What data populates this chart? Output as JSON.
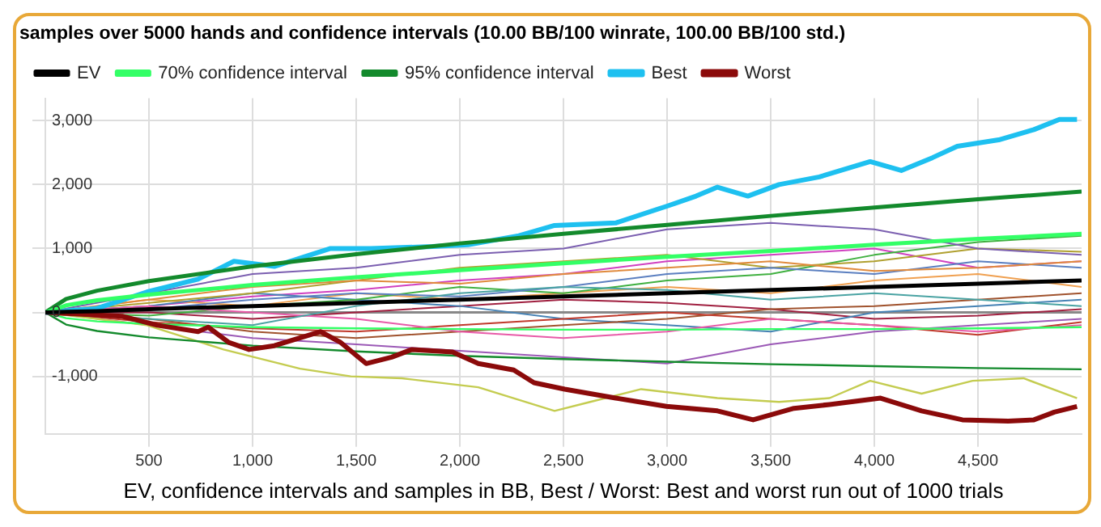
{
  "chart_data": {
    "type": "line",
    "title": "samples over 5000 hands and confidence intervals (10.00 BB/100 winrate, 100.00 BB/100 std.)",
    "xlabel": "EV, confidence intervals and samples in BB, Best / Worst: Best and worst run out of 1000 trials",
    "x": [
      0,
      500,
      1000,
      1500,
      2000,
      2500,
      3000,
      3500,
      4000,
      4500,
      5000
    ],
    "xlim": [
      0,
      5000
    ],
    "ylim": [
      -1900,
      3350
    ],
    "xticks": [
      {
        "value": 500,
        "label": "500"
      },
      {
        "value": 1000,
        "label": "1,000"
      },
      {
        "value": 1500,
        "label": "1,500"
      },
      {
        "value": 2000,
        "label": "2,000"
      },
      {
        "value": 2500,
        "label": "2,500"
      },
      {
        "value": 3000,
        "label": "3,000"
      },
      {
        "value": 3500,
        "label": "3,500"
      },
      {
        "value": 4000,
        "label": "4,000"
      },
      {
        "value": 4500,
        "label": "4,500"
      }
    ],
    "yticks": [
      {
        "value": -1000,
        "label": "-1,000"
      },
      0,
      {
        "value": 1000,
        "label": "1,000"
      },
      {
        "value": 2000,
        "label": "2,000"
      },
      {
        "value": 3000,
        "label": "3,000"
      }
    ],
    "grid": true,
    "legend": "top left",
    "marker": "none",
    "ref_lines": [
      {
        "axis": "y",
        "value": 0,
        "color": "#888888"
      }
    ],
    "series": [
      {
        "name": "EV",
        "color": "#000000",
        "x": [
          0,
          100,
          250,
          500,
          1000,
          1500,
          2000,
          2500,
          3000,
          3500,
          4000,
          4500,
          5000
        ],
        "values": [
          0,
          10,
          20,
          50,
          100,
          150,
          200,
          250,
          300,
          350,
          400,
          450,
          500
        ]
      },
      {
        "name": "70% confidence interval",
        "color": "#33ff66",
        "x": [
          0,
          100,
          250,
          500,
          1000,
          1500,
          2000,
          2500,
          3000,
          3500,
          4000,
          4500,
          5000
        ],
        "values": [
          0,
          110,
          190,
          280,
          430,
          550,
          660,
          770,
          870,
          960,
          1060,
          1150,
          1230
        ]
      },
      {
        "color": "#33ff66",
        "x": [
          0,
          100,
          250,
          500,
          1000,
          1500,
          2000,
          2500,
          3000,
          3500,
          4000,
          4500,
          5000
        ],
        "values": [
          0,
          -90,
          -140,
          -180,
          -230,
          -250,
          -260,
          -270,
          -270,
          -260,
          -260,
          -250,
          -230
        ]
      },
      {
        "name": "95% confidence interval",
        "color": "#138a2c",
        "x": [
          0,
          100,
          250,
          500,
          1000,
          1500,
          2000,
          2500,
          3000,
          3500,
          4000,
          4500,
          5000
        ],
        "values": [
          0,
          210,
          340,
          490,
          720,
          910,
          1080,
          1230,
          1370,
          1510,
          1640,
          1770,
          1890
        ]
      },
      {
        "color": "#138a2c",
        "x": [
          0,
          100,
          250,
          500,
          1000,
          1500,
          2000,
          2500,
          3000,
          3500,
          4000,
          4500,
          5000
        ],
        "values": [
          0,
          -190,
          -290,
          -390,
          -520,
          -610,
          -680,
          -730,
          -770,
          -810,
          -840,
          -870,
          -890
        ]
      },
      {
        "name": "Best",
        "color": "#1ec0f0",
        "x": [
          0,
          245,
          490,
          737,
          910,
          1105,
          1376,
          1570,
          1867,
          2040,
          2285,
          2457,
          2752,
          2997,
          3140,
          3243,
          3390,
          3540,
          3735,
          3980,
          4130,
          4280,
          4400,
          4600,
          4770,
          4893,
          4978
        ],
        "values": [
          0,
          60,
          320,
          520,
          800,
          720,
          1000,
          1000,
          1030,
          1060,
          1200,
          1360,
          1400,
          1660,
          1820,
          1960,
          1820,
          2000,
          2120,
          2360,
          2220,
          2420,
          2600,
          2700,
          2860,
          3020,
          3020
        ]
      },
      {
        "name": "Worst",
        "color": "#8b0a0a",
        "x": [
          0,
          370,
          540,
          737,
          786,
          885,
          983,
          1105,
          1327,
          1425,
          1548,
          1671,
          1769,
          1965,
          2089,
          2260,
          2358,
          2506,
          2752,
          2997,
          3243,
          3415,
          3612,
          3784,
          4030,
          4228,
          4425,
          4646,
          4770,
          4868,
          4978
        ],
        "values": [
          0,
          -60,
          -200,
          -300,
          -230,
          -470,
          -580,
          -520,
          -300,
          -470,
          -800,
          -700,
          -580,
          -620,
          -800,
          -900,
          -1100,
          -1200,
          -1340,
          -1470,
          -1540,
          -1680,
          -1500,
          -1440,
          -1340,
          -1540,
          -1680,
          -1700,
          -1680,
          -1560,
          -1470
        ]
      },
      {
        "color": "#c4cc50",
        "x": [
          0,
          490,
          860,
          1229,
          1474,
          1720,
          2089,
          2457,
          2629,
          2875,
          3243,
          3540,
          3784,
          3980,
          4228,
          4474,
          4720,
          4978
        ],
        "values": [
          0,
          -200,
          -580,
          -880,
          -1000,
          -1030,
          -1170,
          -1540,
          -1400,
          -1200,
          -1340,
          -1400,
          -1340,
          -1070,
          -1270,
          -1070,
          -1030,
          -1340
        ]
      },
      {
        "color": "#7b5fb0",
        "values": [
          0,
          300,
          600,
          700,
          900,
          1000,
          1300,
          1400,
          1300,
          1000,
          900
        ]
      },
      {
        "color": "#e08a3c",
        "values": [
          0,
          200,
          400,
          500,
          450,
          600,
          700,
          800,
          650,
          700,
          800
        ]
      },
      {
        "color": "#4aa3a3",
        "values": [
          0,
          -100,
          -200,
          100,
          300,
          400,
          350,
          200,
          300,
          200,
          100
        ]
      },
      {
        "color": "#e85aa8",
        "values": [
          0,
          100,
          0,
          -100,
          -300,
          -400,
          -300,
          -100,
          -200,
          -300,
          -200
        ]
      },
      {
        "color": "#c0392b",
        "values": [
          0,
          -150,
          -250,
          -300,
          -200,
          -100,
          0,
          -100,
          -200,
          -350,
          -150
        ]
      },
      {
        "color": "#5b7fc0",
        "values": [
          0,
          50,
          200,
          300,
          250,
          400,
          600,
          700,
          600,
          800,
          700
        ]
      },
      {
        "color": "#b0a030",
        "values": [
          0,
          150,
          300,
          500,
          700,
          800,
          900,
          700,
          800,
          1000,
          950
        ]
      },
      {
        "color": "#40b040",
        "values": [
          0,
          -50,
          100,
          200,
          400,
          300,
          500,
          600,
          900,
          1100,
          1200
        ]
      },
      {
        "color": "#a0522d",
        "values": [
          0,
          -100,
          -300,
          -400,
          -300,
          -200,
          -100,
          50,
          100,
          200,
          300
        ]
      },
      {
        "color": "#9b59b6",
        "values": [
          0,
          -200,
          -400,
          -500,
          -600,
          -700,
          -800,
          -500,
          -300,
          -200,
          -100
        ]
      },
      {
        "color": "#4682b4",
        "values": [
          0,
          100,
          300,
          200,
          100,
          -100,
          -200,
          -300,
          0,
          100,
          200
        ]
      },
      {
        "color": "#a02040",
        "values": [
          0,
          0,
          -100,
          0,
          100,
          200,
          150,
          50,
          -100,
          -50,
          50
        ]
      },
      {
        "color": "#f0a050",
        "values": [
          0,
          200,
          100,
          300,
          200,
          300,
          400,
          300,
          500,
          600,
          400
        ]
      },
      {
        "color": "#d040c0",
        "values": [
          0,
          100,
          250,
          350,
          500,
          600,
          800,
          900,
          1000,
          700,
          800
        ]
      }
    ]
  }
}
